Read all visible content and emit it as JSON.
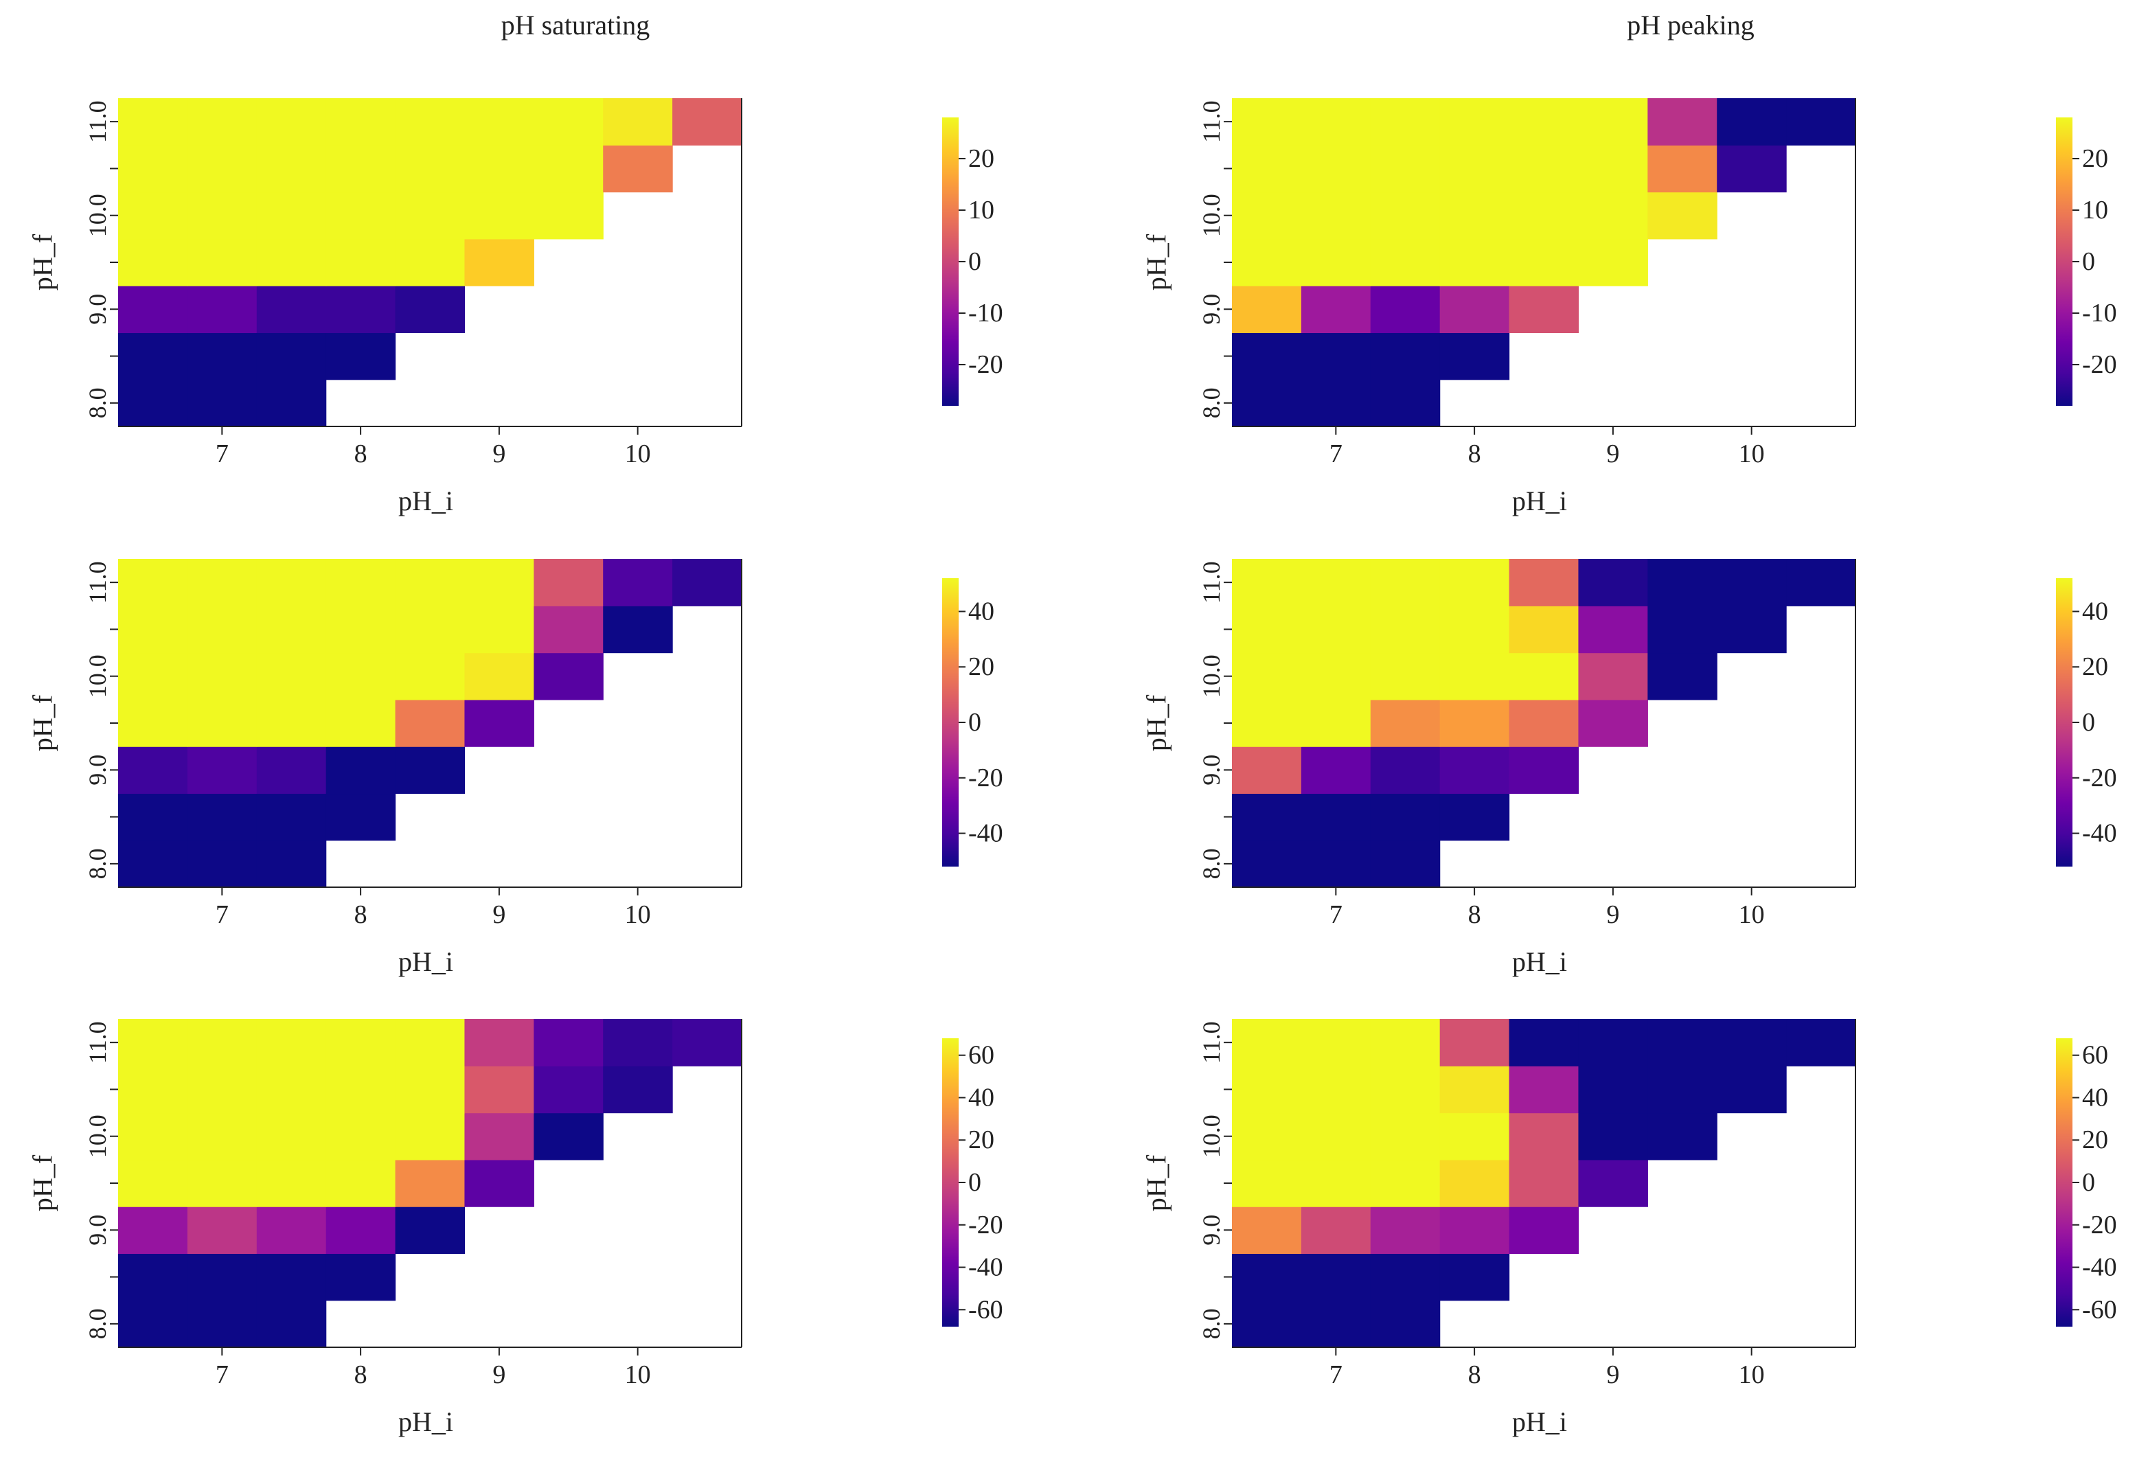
{
  "figure": {
    "column_titles": [
      "pH saturating",
      "pH peaking"
    ]
  },
  "palette": {
    "background": "#ffffff",
    "axis_color": "#222222",
    "colormap": "plasma",
    "colormap_stops": [
      "#0d0887",
      "#46039f",
      "#7201a8",
      "#9c179e",
      "#bd3786",
      "#d8576b",
      "#ed7953",
      "#fb9f3a",
      "#fdca26",
      "#f0f921"
    ]
  },
  "chart_data": [
    {
      "type": "heatmap",
      "title": "pH saturating",
      "xlabel": "pH_i",
      "ylabel": "pH_f",
      "x": [
        6.5,
        7.0,
        7.5,
        8.0,
        8.5,
        9.0,
        9.5,
        10.0,
        10.5
      ],
      "y": [
        8.0,
        8.5,
        9.0,
        9.5,
        10.0,
        10.5,
        11.0
      ],
      "xticks": [
        7,
        8,
        9,
        10
      ],
      "xticklabels": [
        "7",
        "8",
        "9",
        "10"
      ],
      "yticks": [
        8,
        9,
        10,
        11
      ],
      "yticklabels": [
        "8.0",
        "9.0",
        "10.0",
        "11.0"
      ],
      "vmin": -28,
      "vmax": 28,
      "colorbar_ticks": [
        20,
        10,
        0,
        -10,
        -20
      ],
      "colorbar_labels": [
        "20",
        "10",
        "0",
        "-10",
        "-20"
      ],
      "z": [
        [
          -28,
          -28,
          -28,
          null,
          null,
          null,
          null,
          null,
          null
        ],
        [
          -28,
          -28,
          -28,
          -28,
          null,
          null,
          null,
          null,
          null
        ],
        [
          -18,
          -18,
          -23,
          -23,
          -25,
          null,
          null,
          null,
          null
        ],
        [
          28,
          28,
          28,
          28,
          28,
          22,
          null,
          null,
          null
        ],
        [
          28,
          28,
          28,
          28,
          28,
          28,
          28,
          null,
          null
        ],
        [
          28,
          28,
          28,
          28,
          28,
          28,
          28,
          10,
          null
        ],
        [
          28,
          28,
          28,
          28,
          28,
          28,
          28,
          26,
          5
        ]
      ]
    },
    {
      "type": "heatmap",
      "title": "pH peaking",
      "xlabel": "pH_i",
      "ylabel": "pH_f",
      "x": [
        6.5,
        7.0,
        7.5,
        8.0,
        8.5,
        9.0,
        9.5,
        10.0,
        10.5
      ],
      "y": [
        8.0,
        8.5,
        9.0,
        9.5,
        10.0,
        10.5,
        11.0
      ],
      "xticks": [
        7,
        8,
        9,
        10
      ],
      "xticklabels": [
        "7",
        "8",
        "9",
        "10"
      ],
      "yticks": [
        8,
        9,
        10,
        11
      ],
      "yticklabels": [
        "8.0",
        "9.0",
        "10.0",
        "11.0"
      ],
      "vmin": -28,
      "vmax": 28,
      "colorbar_ticks": [
        20,
        10,
        0,
        -10,
        -20
      ],
      "colorbar_labels": [
        "20",
        "10",
        "0",
        "-10",
        "-20"
      ],
      "z": [
        [
          -28,
          -28,
          -28,
          null,
          null,
          null,
          null,
          null,
          null
        ],
        [
          -28,
          -28,
          -28,
          -28,
          null,
          null,
          null,
          null,
          null
        ],
        [
          20,
          -9,
          -17,
          -7,
          2,
          null,
          null,
          null,
          null
        ],
        [
          28,
          28,
          28,
          28,
          28,
          28,
          null,
          null,
          null
        ],
        [
          28,
          28,
          28,
          28,
          28,
          28,
          26,
          null,
          null
        ],
        [
          28,
          28,
          28,
          28,
          28,
          28,
          12,
          -24,
          null
        ],
        [
          28,
          28,
          28,
          28,
          28,
          28,
          -4,
          -28,
          -28
        ]
      ]
    },
    {
      "type": "heatmap",
      "title": "",
      "xlabel": "pH_i",
      "ylabel": "pH_f",
      "x": [
        6.5,
        7.0,
        7.5,
        8.0,
        8.5,
        9.0,
        9.5,
        10.0,
        10.5
      ],
      "y": [
        8.0,
        8.5,
        9.0,
        9.5,
        10.0,
        10.5,
        11.0
      ],
      "xticks": [
        7,
        8,
        9,
        10
      ],
      "xticklabels": [
        "7",
        "8",
        "9",
        "10"
      ],
      "yticks": [
        8,
        9,
        10,
        11
      ],
      "yticklabels": [
        "8.0",
        "9.0",
        "10.0",
        "11.0"
      ],
      "vmin": -52,
      "vmax": 52,
      "colorbar_ticks": [
        40,
        20,
        0,
        -20,
        -40
      ],
      "colorbar_labels": [
        "40",
        "20",
        "0",
        "-20",
        "-40"
      ],
      "z": [
        [
          -52,
          -52,
          -52,
          null,
          null,
          null,
          null,
          null,
          null
        ],
        [
          -52,
          -52,
          -52,
          -52,
          null,
          null,
          null,
          null,
          null
        ],
        [
          -42,
          -38,
          -42,
          -52,
          -52,
          null,
          null,
          null,
          null
        ],
        [
          52,
          52,
          52,
          52,
          18,
          -33,
          null,
          null,
          null
        ],
        [
          52,
          52,
          52,
          52,
          52,
          48,
          -36,
          null,
          null
        ],
        [
          52,
          52,
          52,
          52,
          52,
          52,
          -10,
          -52,
          null
        ],
        [
          52,
          52,
          52,
          52,
          52,
          52,
          5,
          -38,
          -45
        ]
      ]
    },
    {
      "type": "heatmap",
      "title": "",
      "xlabel": "pH_i",
      "ylabel": "pH_f",
      "x": [
        6.5,
        7.0,
        7.5,
        8.0,
        8.5,
        9.0,
        9.5,
        10.0,
        10.5
      ],
      "y": [
        8.0,
        8.5,
        9.0,
        9.5,
        10.0,
        10.5,
        11.0
      ],
      "xticks": [
        7,
        8,
        9,
        10
      ],
      "xticklabels": [
        "7",
        "8",
        "9",
        "10"
      ],
      "yticks": [
        8,
        9,
        10,
        11
      ],
      "yticklabels": [
        "8.0",
        "9.0",
        "10.0",
        "11.0"
      ],
      "vmin": -52,
      "vmax": 52,
      "colorbar_ticks": [
        40,
        20,
        0,
        -20,
        -40
      ],
      "colorbar_labels": [
        "40",
        "20",
        "0",
        "-20",
        "-40"
      ],
      "z": [
        [
          -52,
          -52,
          -52,
          null,
          null,
          null,
          null,
          null,
          null
        ],
        [
          -52,
          -52,
          -52,
          -52,
          null,
          null,
          null,
          null,
          null
        ],
        [
          8,
          -32,
          -43,
          -38,
          -35,
          null,
          null,
          null,
          null
        ],
        [
          52,
          52,
          24,
          28,
          16,
          -16,
          null,
          null,
          null
        ],
        [
          52,
          52,
          52,
          52,
          52,
          -2,
          -52,
          null,
          null
        ],
        [
          52,
          52,
          52,
          52,
          44,
          -22,
          -52,
          -52,
          null
        ],
        [
          52,
          52,
          52,
          52,
          12,
          -48,
          -52,
          -52,
          -52
        ]
      ]
    },
    {
      "type": "heatmap",
      "title": "",
      "xlabel": "pH_i",
      "ylabel": "pH_f",
      "x": [
        6.5,
        7.0,
        7.5,
        8.0,
        8.5,
        9.0,
        9.5,
        10.0,
        10.5
      ],
      "y": [
        8.0,
        8.5,
        9.0,
        9.5,
        10.0,
        10.5,
        11.0
      ],
      "xticks": [
        7,
        8,
        9,
        10
      ],
      "xticklabels": [
        "7",
        "8",
        "9",
        "10"
      ],
      "yticks": [
        8,
        9,
        10,
        11
      ],
      "yticklabels": [
        "8.0",
        "9.0",
        "10.0",
        "11.0"
      ],
      "vmin": -68,
      "vmax": 68,
      "colorbar_ticks": [
        60,
        40,
        20,
        0,
        -20,
        -40,
        -60
      ],
      "colorbar_labels": [
        "60",
        "40",
        "20",
        "0",
        "-20",
        "-40",
        "-60"
      ],
      "z": [
        [
          -68,
          -68,
          -68,
          null,
          null,
          null,
          null,
          null,
          null
        ],
        [
          -68,
          -68,
          -68,
          -68,
          null,
          null,
          null,
          null,
          null
        ],
        [
          -25,
          -8,
          -22,
          -35,
          -68,
          null,
          null,
          null,
          null
        ],
        [
          68,
          68,
          68,
          68,
          30,
          -45,
          null,
          null,
          null
        ],
        [
          68,
          68,
          68,
          68,
          68,
          -10,
          -68,
          null,
          null
        ],
        [
          68,
          68,
          68,
          68,
          68,
          8,
          -52,
          -62,
          null
        ],
        [
          68,
          68,
          68,
          68,
          68,
          -5,
          -45,
          -58,
          -55
        ]
      ]
    },
    {
      "type": "heatmap",
      "title": "",
      "xlabel": "pH_i",
      "ylabel": "pH_f",
      "x": [
        6.5,
        7.0,
        7.5,
        8.0,
        8.5,
        9.0,
        9.5,
        10.0,
        10.5
      ],
      "y": [
        8.0,
        8.5,
        9.0,
        9.5,
        10.0,
        10.5,
        11.0
      ],
      "xticks": [
        7,
        8,
        9,
        10
      ],
      "xticklabels": [
        "7",
        "8",
        "9",
        "10"
      ],
      "yticks": [
        8,
        9,
        10,
        11
      ],
      "yticklabels": [
        "8.0",
        "9.0",
        "10.0",
        "11.0"
      ],
      "vmin": -68,
      "vmax": 68,
      "colorbar_ticks": [
        60,
        40,
        20,
        0,
        -20,
        -40,
        -60
      ],
      "colorbar_labels": [
        "60",
        "40",
        "20",
        "0",
        "-20",
        "-40",
        "-60"
      ],
      "z": [
        [
          -68,
          -68,
          -68,
          null,
          null,
          null,
          null,
          null,
          null
        ],
        [
          -68,
          -68,
          -68,
          -68,
          null,
          null,
          null,
          null,
          null
        ],
        [
          30,
          2,
          -18,
          -22,
          -35,
          null,
          null,
          null,
          null
        ],
        [
          68,
          68,
          68,
          58,
          5,
          -50,
          null,
          null,
          null
        ],
        [
          68,
          68,
          68,
          68,
          5,
          -68,
          -68,
          null,
          null
        ],
        [
          68,
          68,
          68,
          62,
          -20,
          -68,
          -68,
          -68,
          null
        ],
        [
          68,
          68,
          68,
          5,
          -68,
          -68,
          -68,
          -68,
          -68
        ]
      ]
    }
  ]
}
